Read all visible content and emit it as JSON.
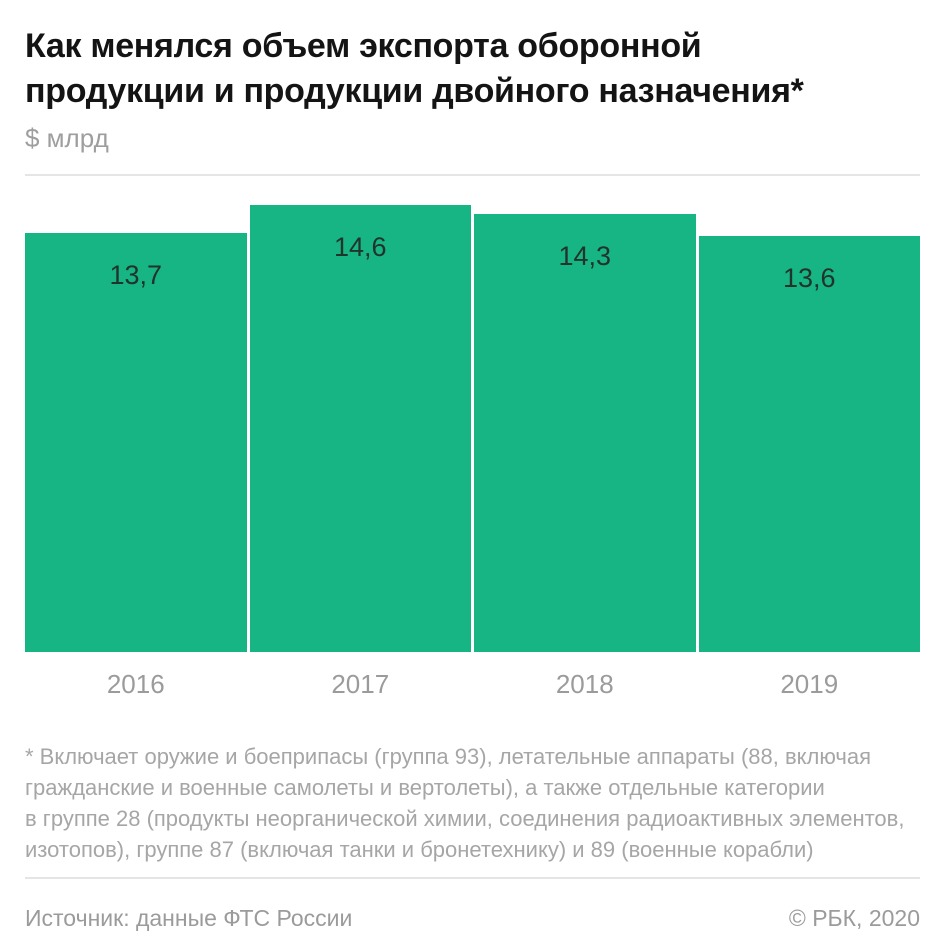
{
  "page": {
    "title": "Как менялся объем экспорта оборонной\nпродукции и продукции двойного назначения*",
    "unit_label": "$ млрд",
    "footnote": "* Включает оружие и боеприпасы (группа 93), летательные аппараты (88, включая\nгражданские и военные самолеты и вертолеты), а также отдельные категории\nв группе 28 (продукты неорганической химии, соединения радиоактивных элементов,\nизотопов), группе 87 (включая танки и бронетехнику) и 89 (военные корабли)",
    "source": "Источник: данные ФТС России",
    "copyright": "© РБК, 2020"
  },
  "chart_data": {
    "type": "bar",
    "title": "Как менялся объем экспорта оборонной продукции и продукции двойного назначения*",
    "ylabel": "$ млрд",
    "xlabel": "",
    "categories": [
      "2016",
      "2017",
      "2018",
      "2019"
    ],
    "values": [
      13.7,
      14.6,
      14.3,
      13.6
    ],
    "value_labels": [
      "13,7",
      "14,6",
      "14,3",
      "13,6"
    ],
    "ylim": [
      0,
      14.6
    ],
    "grid": false,
    "legend": false,
    "colors": {
      "bar": "#16B583",
      "value_label": "#22332C",
      "axis_label": "#9B9B9B"
    }
  }
}
